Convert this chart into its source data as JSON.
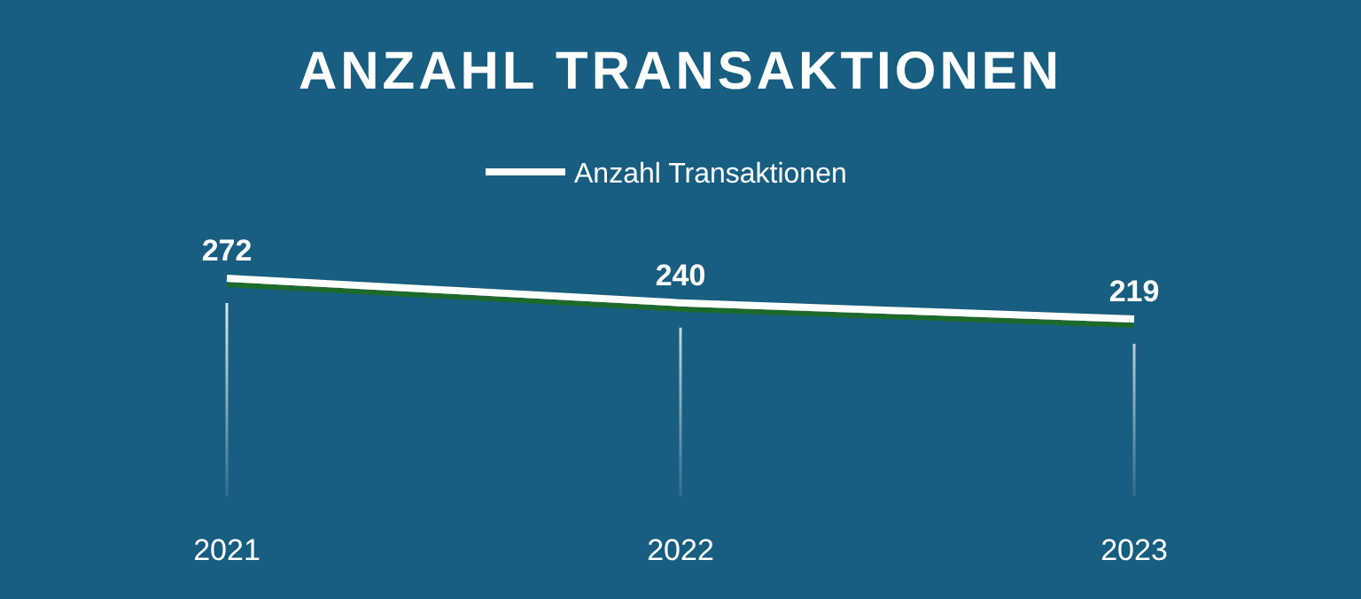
{
  "chart_data": {
    "type": "line",
    "title": "ANZAHL TRANSAKTIONEN",
    "categories": [
      "2021",
      "2022",
      "2023"
    ],
    "series": [
      {
        "name": "Anzahl Transaktionen",
        "color": "#ffffff",
        "values": [
          272,
          240,
          219
        ]
      }
    ],
    "data_labels": true,
    "grid": "x",
    "legend": "top",
    "tick_labels": "x",
    "marker": "none",
    "line_style": "solid"
  }
}
